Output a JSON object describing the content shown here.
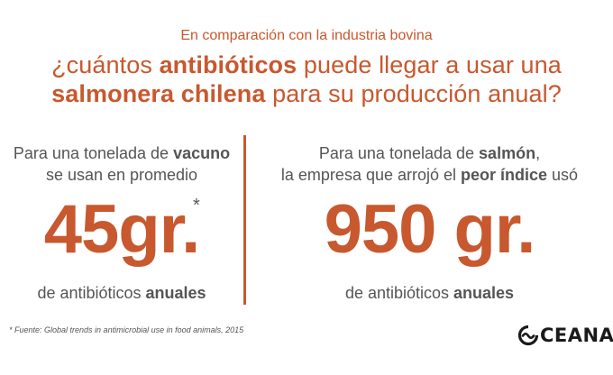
{
  "header": {
    "subtitle": "En comparación con la industria bovina",
    "title_l1_a": "¿cuántos ",
    "title_l1_b": "antibióticos",
    "title_l1_c": " puede llegar a usar una",
    "title_l2_a": "salmonera chilena",
    "title_l2_b": " para su producción anual?"
  },
  "left": {
    "line1_a": "Para una tonelada de ",
    "line1_b": "vacuno",
    "line2": "se usan en promedio",
    "value": "45gr.",
    "asterisk": "*",
    "bottom_a": "de antibióticos ",
    "bottom_b": "anuales"
  },
  "right": {
    "line1_a": "Para una tonelada de ",
    "line1_b": "salmón",
    "line1_c": ",",
    "line2_a": "la empresa que arrojó el ",
    "line2_b": "peor índice",
    "line2_c": " usó",
    "value": "950 gr.",
    "bottom_a": "de antibióticos ",
    "bottom_b": "anuales"
  },
  "footer": {
    "source": "* Fuente: Global trends in antimicrobial use in food animals, 2015",
    "logo_text": "CEANA"
  },
  "colors": {
    "accent": "#c8582e",
    "text": "#555555",
    "logo": "#1a1a1a"
  },
  "icons": {
    "logo": "oceana-wave-o-icon"
  }
}
